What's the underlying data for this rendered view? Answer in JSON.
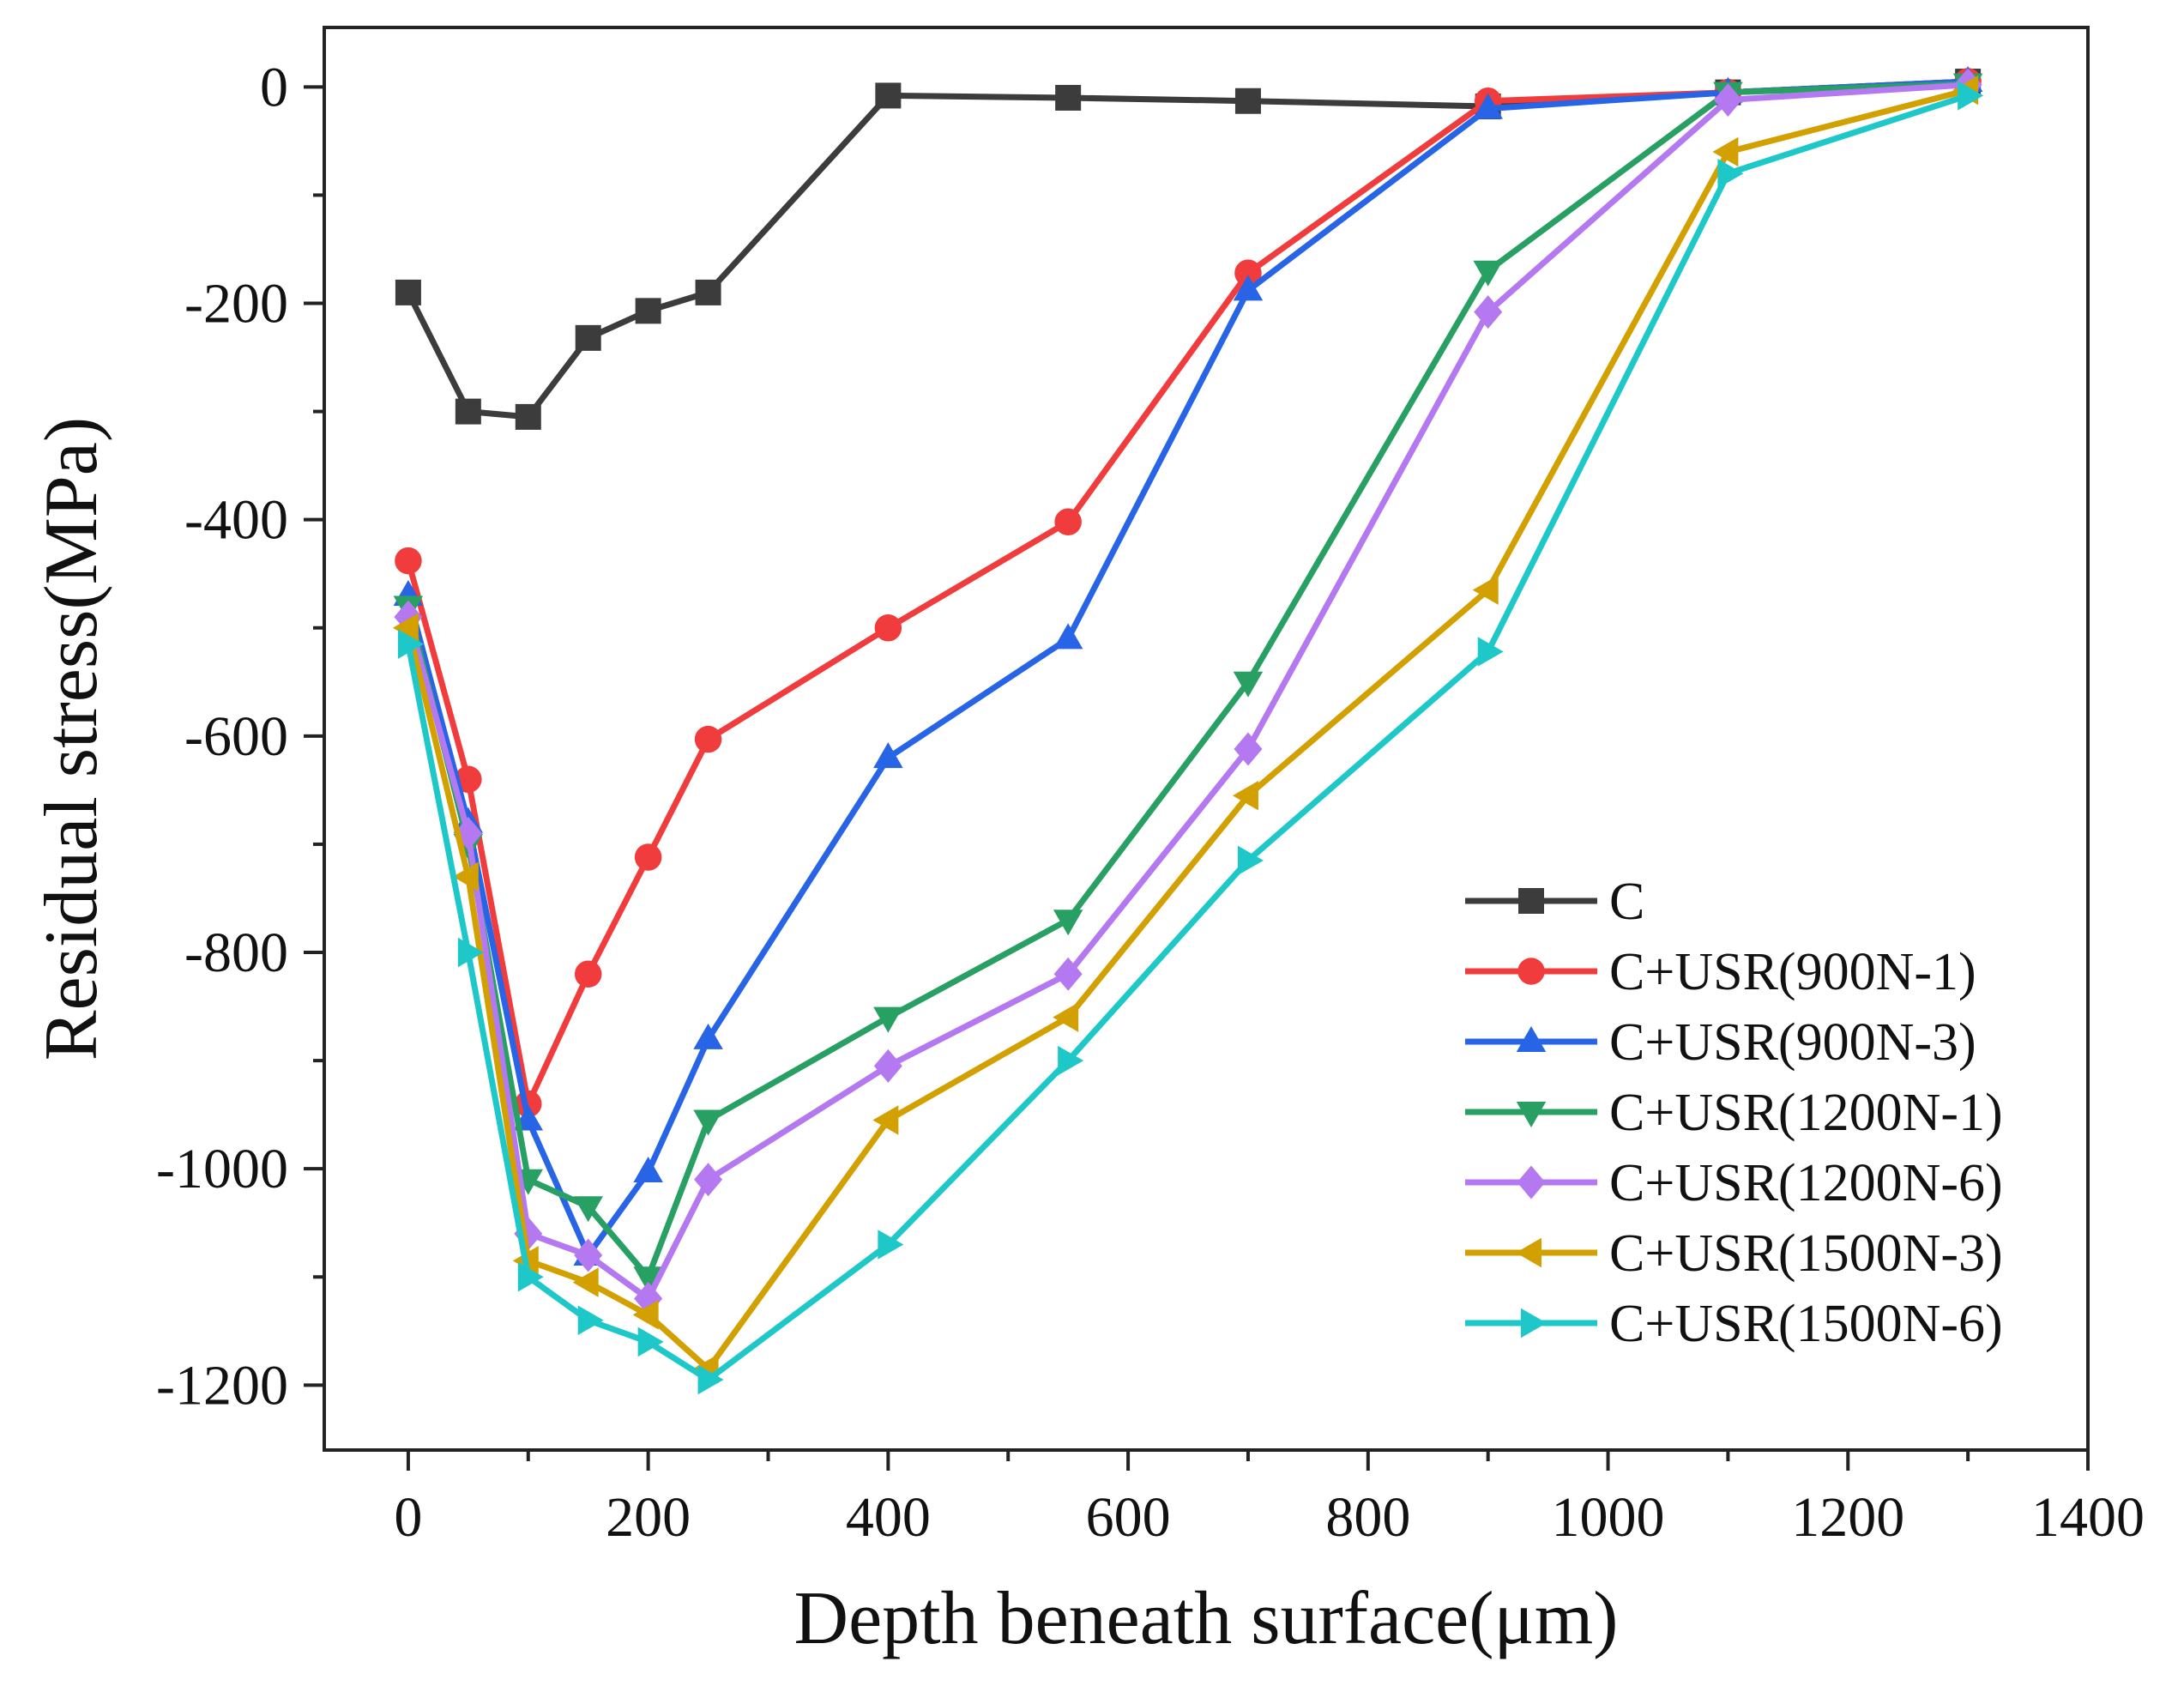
{
  "chart_data": {
    "type": "line",
    "title": "",
    "xlabel": "Depth beneath surface(μm)",
    "ylabel": "Residual stress(MPa)",
    "xlim": [
      -70,
      1400
    ],
    "ylim": [
      -1260,
      55
    ],
    "x_ticks": [
      0,
      200,
      400,
      600,
      800,
      1000,
      1200,
      1400
    ],
    "y_ticks": [
      0,
      -200,
      -400,
      -600,
      -800,
      -1000,
      -1200
    ],
    "x_tick_labels": [
      "0",
      "200",
      "400",
      "600",
      "800",
      "1000",
      "1200",
      "1400"
    ],
    "y_tick_labels": [
      "0",
      "-200",
      "-400",
      "-600",
      "-800",
      "-1000",
      "-1200"
    ],
    "grid": false,
    "legend_position": "bottom-right",
    "series": [
      {
        "name": "C",
        "color": "#3c3c3c",
        "marker": "square",
        "x": [
          0,
          50,
          100,
          150,
          200,
          250,
          400,
          550,
          700,
          900,
          1100,
          1300
        ],
        "y": [
          -190,
          -300,
          -305,
          -232,
          -207,
          -190,
          -8,
          -10,
          -13,
          -18,
          -5,
          5
        ]
      },
      {
        "name": "C+USR(900N-1)",
        "color": "#f03c3c",
        "marker": "circle",
        "x": [
          0,
          50,
          100,
          150,
          200,
          250,
          400,
          550,
          700,
          900,
          1100,
          1300
        ],
        "y": [
          -438,
          -640,
          -940,
          -820,
          -712,
          -603,
          -500,
          -402,
          -172,
          -13,
          -5,
          5
        ]
      },
      {
        "name": "C+USR(900N-3)",
        "color": "#2864e6",
        "marker": "triangle-up",
        "x": [
          0,
          50,
          100,
          150,
          200,
          250,
          400,
          550,
          700,
          900,
          1100,
          1300
        ],
        "y": [
          -470,
          -680,
          -955,
          -1080,
          -1003,
          -880,
          -620,
          -510,
          -188,
          -20,
          -5,
          5
        ]
      },
      {
        "name": "C+USR(1200N-1)",
        "color": "#28a064",
        "marker": "triangle-down",
        "x": [
          0,
          50,
          100,
          150,
          200,
          250,
          400,
          550,
          700,
          900,
          1100,
          1300
        ],
        "y": [
          -480,
          -700,
          -1010,
          -1035,
          -1100,
          -955,
          -860,
          -770,
          -550,
          -170,
          -5,
          3
        ]
      },
      {
        "name": "C+USR(1200N-6)",
        "color": "#b478f0",
        "marker": "diamond",
        "x": [
          0,
          50,
          100,
          150,
          200,
          250,
          400,
          550,
          700,
          900,
          1100,
          1300
        ],
        "y": [
          -490,
          -690,
          -1060,
          -1080,
          -1120,
          -1010,
          -905,
          -820,
          -612,
          -208,
          -12,
          2
        ]
      },
      {
        "name": "C+USR(1500N-3)",
        "color": "#d2a000",
        "marker": "triangle-left",
        "x": [
          0,
          50,
          100,
          150,
          200,
          250,
          400,
          550,
          700,
          900,
          1100,
          1300
        ],
        "y": [
          -500,
          -730,
          -1085,
          -1105,
          -1135,
          -1185,
          -955,
          -860,
          -655,
          -465,
          -60,
          -3
        ]
      },
      {
        "name": "C+USR(1500N-6)",
        "color": "#1ec8c8",
        "marker": "triangle-right",
        "x": [
          0,
          50,
          100,
          150,
          200,
          250,
          400,
          550,
          700,
          900,
          1100,
          1300
        ],
        "y": [
          -515,
          -800,
          -1100,
          -1140,
          -1160,
          -1195,
          -1070,
          -900,
          -715,
          -522,
          -80,
          -8
        ]
      }
    ]
  }
}
